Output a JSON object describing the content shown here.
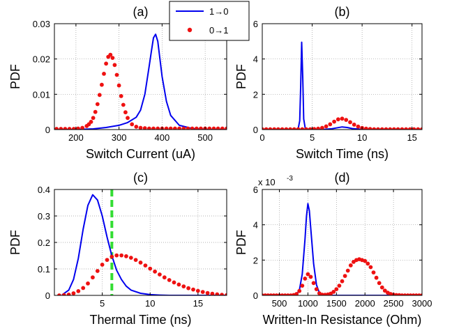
{
  "legend": {
    "entries": [
      {
        "label": "1→0",
        "color": "#0000ee",
        "style": "line"
      },
      {
        "label": "0→1",
        "color": "#ee1111",
        "style": "dots"
      }
    ]
  },
  "chart_data": [
    {
      "panel": "(a)",
      "type": "line",
      "title": "(a)",
      "xlabel": "Switch Current (uA)",
      "ylabel": "PDF",
      "xlim": [
        150,
        550
      ],
      "ylim": [
        0,
        0.03
      ],
      "xticks": [
        200,
        300,
        400,
        500
      ],
      "xtick_labels": [
        "200",
        "300",
        "400",
        "500"
      ],
      "yticks": [
        0,
        0.01,
        0.02,
        0.03
      ],
      "ytick_labels": [
        "0",
        "0.01",
        "0.02",
        "0.03"
      ],
      "grid": true,
      "series": [
        {
          "name": "1→0",
          "style": "line",
          "color": "#0000ee",
          "x": [
            160,
            200,
            240,
            270,
            300,
            320,
            340,
            350,
            360,
            365,
            370,
            375,
            380,
            385,
            390,
            395,
            400,
            410,
            420,
            440,
            470,
            500,
            550
          ],
          "y": [
            0,
            0,
            0.0002,
            0.0006,
            0.0012,
            0.002,
            0.0035,
            0.0055,
            0.01,
            0.014,
            0.018,
            0.022,
            0.026,
            0.027,
            0.025,
            0.02,
            0.015,
            0.008,
            0.004,
            0.0012,
            0.0003,
            0,
            0
          ]
        },
        {
          "name": "0→1",
          "style": "dots",
          "color": "#ee1111",
          "x": [
            155,
            165,
            175,
            185,
            195,
            205,
            215,
            225,
            230,
            235,
            240,
            245,
            250,
            255,
            260,
            265,
            270,
            275,
            280,
            285,
            290,
            295,
            300,
            305,
            310,
            315,
            320,
            330,
            340,
            350,
            360,
            370,
            380,
            390,
            400,
            410,
            420,
            430,
            440,
            450,
            460,
            470,
            480,
            490,
            500,
            510,
            520,
            530,
            540,
            550
          ],
          "y": [
            0.0002,
            0.0002,
            0.0002,
            0.0002,
            0.0002,
            0.0003,
            0.0005,
            0.001,
            0.0015,
            0.0022,
            0.0033,
            0.005,
            0.0072,
            0.0098,
            0.0127,
            0.0158,
            0.0187,
            0.0206,
            0.0212,
            0.0203,
            0.0183,
            0.0155,
            0.0125,
            0.0095,
            0.007,
            0.0049,
            0.0033,
            0.0015,
            0.0008,
            0.0005,
            0.0004,
            0.0003,
            0.0003,
            0.0003,
            0.0003,
            0.0003,
            0.0003,
            0.0003,
            0.0003,
            0.0003,
            0.0003,
            0.0003,
            0.0003,
            0.0003,
            0.0003,
            0.0003,
            0.0003,
            0.0003,
            0.0003,
            0.0003
          ]
        }
      ]
    },
    {
      "panel": "(b)",
      "type": "line",
      "title": "(b)",
      "xlabel": "Switch Time (ns)",
      "ylabel": "PDF",
      "xlim": [
        0,
        16
      ],
      "ylim": [
        0,
        6
      ],
      "xticks": [
        0,
        5,
        10,
        15
      ],
      "xtick_labels": [
        "0",
        "5",
        "10",
        "15"
      ],
      "yticks": [
        0,
        2,
        4,
        6
      ],
      "ytick_labels": [
        "0",
        "2",
        "4",
        "6"
      ],
      "grid": true,
      "series": [
        {
          "name": "1→0",
          "style": "line",
          "color": "#0000ee",
          "x": [
            0,
            3.4,
            3.6,
            3.75,
            3.85,
            3.95,
            4.05,
            4.15,
            4.3,
            4.5,
            5,
            6,
            7,
            8,
            8.5,
            9,
            10,
            16
          ],
          "y": [
            0,
            0,
            0.05,
            0.5,
            2.5,
            4.95,
            3.0,
            0.6,
            0.1,
            0.02,
            0,
            0,
            0.05,
            0.15,
            0.12,
            0.06,
            0.01,
            0
          ]
        },
        {
          "name": "0→1",
          "style": "dots",
          "color": "#ee1111",
          "x": [
            0,
            0.4,
            0.8,
            1.2,
            1.6,
            2,
            2.4,
            2.8,
            3.2,
            3.6,
            4,
            4.4,
            4.8,
            5.2,
            5.6,
            6,
            6.4,
            6.8,
            7.2,
            7.6,
            8,
            8.4,
            8.8,
            9.2,
            9.6,
            10,
            10.4,
            10.8,
            11.2,
            11.6,
            12,
            12.4,
            12.8,
            13.2,
            13.6,
            14,
            14.4,
            14.8,
            15.2,
            15.6,
            16
          ],
          "y": [
            0.02,
            0.02,
            0.02,
            0.02,
            0.02,
            0.02,
            0.02,
            0.02,
            0.02,
            0.02,
            0.02,
            0.02,
            0.02,
            0.03,
            0.05,
            0.1,
            0.18,
            0.3,
            0.45,
            0.58,
            0.62,
            0.55,
            0.42,
            0.28,
            0.17,
            0.09,
            0.05,
            0.03,
            0.02,
            0.02,
            0.02,
            0.02,
            0.02,
            0.02,
            0.02,
            0.02,
            0.02,
            0.02,
            0.02,
            0.02,
            0.02
          ]
        }
      ]
    },
    {
      "panel": "(c)",
      "type": "line",
      "title": "(c)",
      "xlabel": "Thermal Time (ns)",
      "ylabel": "PDF",
      "xlim": [
        0,
        18
      ],
      "ylim": [
        0,
        0.4
      ],
      "xticks": [
        5,
        10,
        15
      ],
      "xtick_labels": [
        "5",
        "10",
        "15"
      ],
      "yticks": [
        0,
        0.1,
        0.2,
        0.3,
        0.4
      ],
      "ytick_labels": [
        "0",
        "0.1",
        "0.2",
        "0.3",
        "0.4"
      ],
      "grid": true,
      "threshold_x": 6,
      "threshold_color": "#33dd33",
      "series": [
        {
          "name": "1→0",
          "style": "line",
          "color": "#0000ee",
          "x": [
            0.8,
            1.5,
            2,
            2.5,
            3,
            3.5,
            4,
            4.5,
            5,
            5.5,
            6,
            6.5,
            7,
            7.5,
            8,
            9,
            10,
            11,
            12,
            14,
            18
          ],
          "y": [
            0.002,
            0.02,
            0.06,
            0.14,
            0.25,
            0.34,
            0.38,
            0.36,
            0.3,
            0.22,
            0.15,
            0.095,
            0.06,
            0.035,
            0.02,
            0.008,
            0.003,
            0.001,
            0,
            0,
            0
          ]
        },
        {
          "name": "0→1",
          "style": "dots",
          "color": "#ee1111",
          "x": [
            0.5,
            1,
            1.5,
            2,
            2.5,
            3,
            3.5,
            4,
            4.5,
            5,
            5.5,
            6,
            6.5,
            7,
            7.5,
            8,
            8.5,
            9,
            9.5,
            10,
            10.5,
            11,
            11.5,
            12,
            12.5,
            13,
            13.5,
            14,
            14.5,
            15,
            15.5,
            16,
            16.5,
            17,
            17.5,
            18
          ],
          "y": [
            0,
            0.001,
            0.003,
            0.008,
            0.016,
            0.028,
            0.045,
            0.068,
            0.092,
            0.116,
            0.134,
            0.146,
            0.151,
            0.151,
            0.148,
            0.142,
            0.134,
            0.124,
            0.113,
            0.101,
            0.09,
            0.079,
            0.068,
            0.058,
            0.049,
            0.041,
            0.034,
            0.027,
            0.022,
            0.017,
            0.013,
            0.009,
            0.006,
            0.004,
            0.002,
            0.001
          ]
        }
      ]
    },
    {
      "panel": "(d)",
      "type": "line",
      "title": "(d)",
      "xlabel": "Written-In Resistance (Ohm)",
      "ylabel": "PDF",
      "xlim": [
        200,
        3000
      ],
      "ylim": [
        0,
        0.006
      ],
      "xticks": [
        500,
        1000,
        1500,
        2000,
        2500,
        3000
      ],
      "xtick_labels": [
        "500",
        "1000",
        "1500",
        "2000",
        "2500",
        "3000"
      ],
      "yticks": [
        0,
        0.002,
        0.004,
        0.006
      ],
      "ytick_labels": [
        "0",
        "2",
        "4",
        "6"
      ],
      "multiplier": "x 10",
      "multiplier_exp": "-3",
      "grid": true,
      "series": [
        {
          "name": "1→0",
          "style": "line",
          "color": "#0000ee",
          "x": [
            200,
            700,
            800,
            850,
            900,
            950,
            975,
            1000,
            1025,
            1050,
            1100,
            1150,
            1200,
            1250,
            1300,
            1400,
            3000
          ],
          "y": [
            0,
            0,
            5e-05,
            0.0003,
            0.0012,
            0.0032,
            0.0045,
            0.0052,
            0.0048,
            0.0038,
            0.0018,
            0.0006,
            0.00015,
            3e-05,
            0,
            0,
            0
          ]
        },
        {
          "name": "0→1",
          "style": "dots",
          "color": "#ee1111",
          "x": [
            200,
            250,
            300,
            350,
            400,
            450,
            500,
            550,
            600,
            650,
            700,
            750,
            800,
            850,
            900,
            950,
            1000,
            1050,
            1100,
            1150,
            1200,
            1250,
            1300,
            1350,
            1400,
            1450,
            1500,
            1550,
            1600,
            1650,
            1700,
            1750,
            1800,
            1850,
            1900,
            1950,
            2000,
            2050,
            2100,
            2150,
            2200,
            2250,
            2300,
            2350,
            2400,
            2450,
            2500,
            2550,
            2600,
            2650,
            2700,
            2750,
            2800,
            2850,
            2900,
            2950,
            3000
          ],
          "y": [
            0,
            0,
            0,
            0,
            0,
            0,
            0,
            0,
            0,
            0,
            0,
            2e-05,
            8e-05,
            0.00025,
            0.00055,
            0.00095,
            0.0012,
            0.00105,
            0.0007,
            0.00035,
            0.00012,
            4e-05,
            3e-05,
            5e-05,
            0.0001,
            0.0002,
            0.00035,
            0.00055,
            0.0008,
            0.0011,
            0.0014,
            0.0017,
            0.0019,
            0.002,
            0.00205,
            0.002,
            0.00195,
            0.0018,
            0.0016,
            0.0013,
            0.001,
            0.0007,
            0.00045,
            0.00027,
            0.00015,
            8e-05,
            4e-05,
            2e-05,
            1e-05,
            0,
            0,
            0,
            0,
            0,
            0,
            0,
            0
          ]
        }
      ]
    }
  ]
}
